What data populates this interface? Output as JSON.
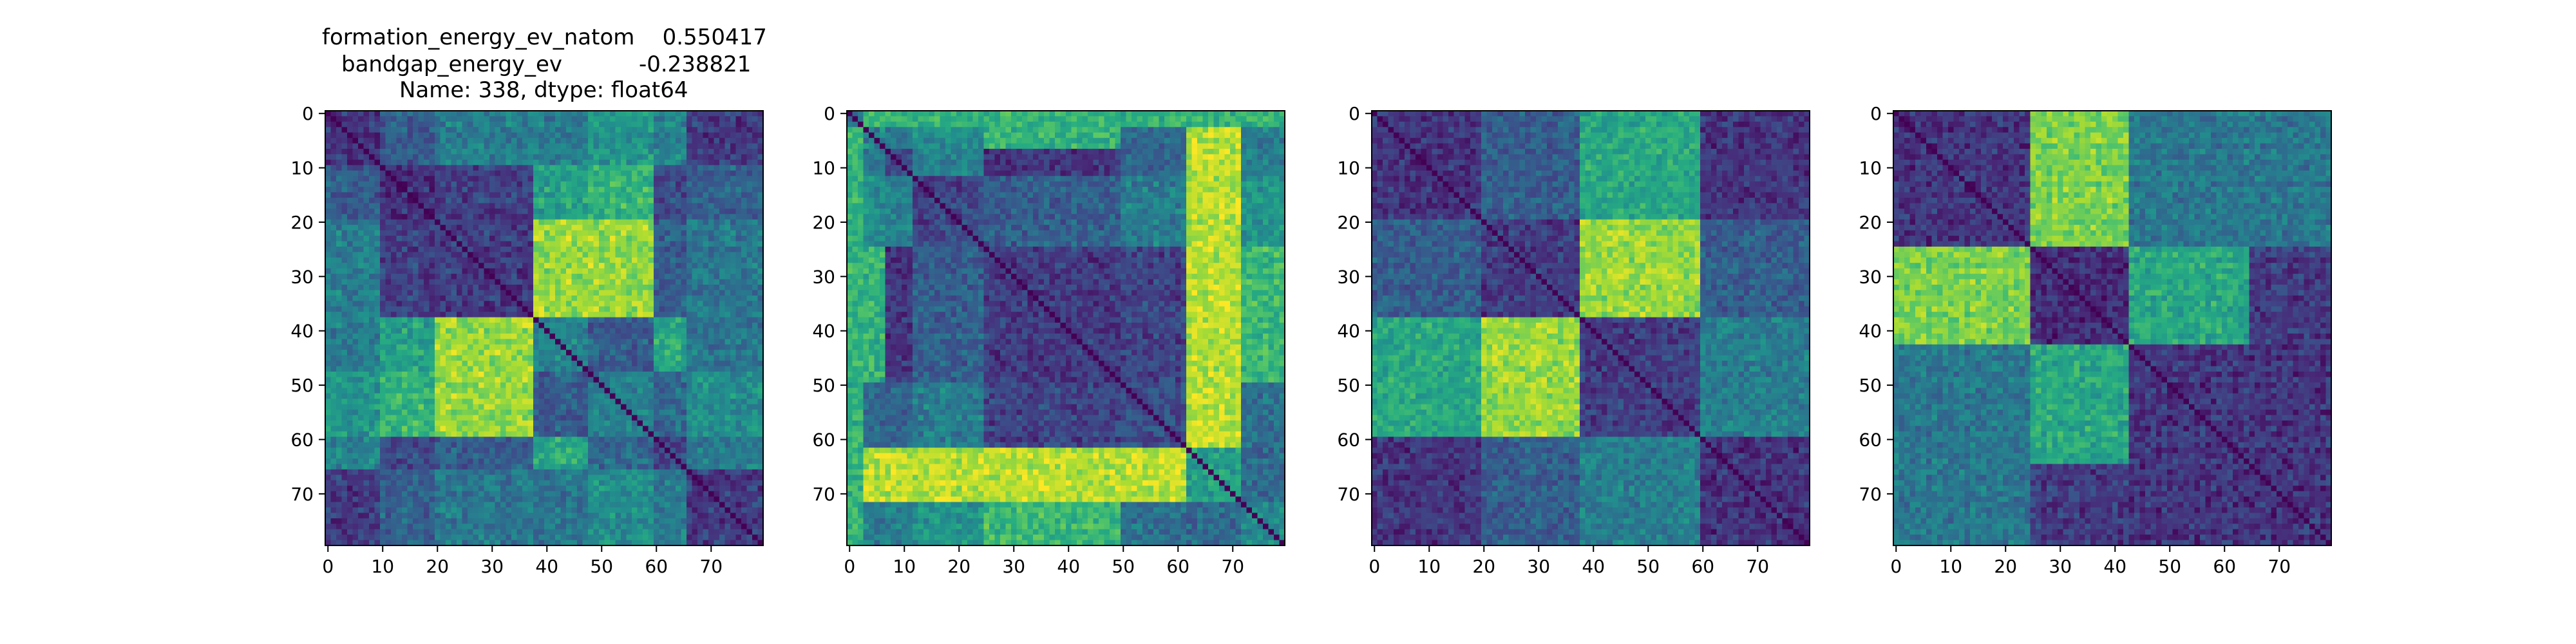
{
  "figure": {
    "title_lines": [
      "formation_energy_ev_natom    0.550417",
      "bandgap_energy_ev           -0.238821",
      "Name: 338, dtype: float64"
    ]
  },
  "chart_data": [
    {
      "type": "heatmap",
      "size": 80,
      "colormap": "viridis",
      "xlim": [
        0,
        79
      ],
      "ylim": [
        79,
        0
      ],
      "xticks": [
        0,
        10,
        20,
        30,
        40,
        50,
        60,
        70
      ],
      "yticks": [
        0,
        10,
        20,
        30,
        40,
        50,
        60,
        70
      ],
      "xtick_labels": [
        "0",
        "10",
        "20",
        "30",
        "40",
        "50",
        "60",
        "70"
      ],
      "ytick_labels": [
        "0",
        "10",
        "20",
        "30",
        "40",
        "50",
        "60",
        "70"
      ],
      "diagonal_value": 0.0,
      "blocks": [
        0,
        10,
        20,
        38,
        48,
        60,
        66,
        80
      ],
      "block_levels": [
        0.25,
        0.22,
        0.3,
        0.75,
        0.7,
        0.35,
        0.3
      ],
      "note": "symmetric distance-style matrix: low values near diagonal, high values at rows 20-38 vs cols 38-60"
    },
    {
      "type": "heatmap",
      "size": 80,
      "colormap": "viridis",
      "xlim": [
        0,
        79
      ],
      "ylim": [
        79,
        0
      ],
      "xticks": [
        0,
        10,
        20,
        30,
        40,
        50,
        60,
        70
      ],
      "yticks": [
        0,
        10,
        20,
        30,
        40,
        50,
        60,
        70
      ],
      "xtick_labels": [
        "0",
        "10",
        "20",
        "30",
        "40",
        "50",
        "60",
        "70"
      ],
      "ytick_labels": [
        "0",
        "10",
        "20",
        "30",
        "40",
        "50",
        "60",
        "70"
      ],
      "diagonal_value": 0.0,
      "blocks": [
        0,
        3,
        7,
        12,
        25,
        50,
        62,
        72,
        80
      ],
      "block_levels": [
        0.6,
        0.75,
        0.3,
        0.35,
        0.3,
        0.4,
        0.95,
        0.8
      ],
      "note": "high values along rows/cols 63-75 and near 0-8"
    },
    {
      "type": "heatmap",
      "size": 80,
      "colormap": "viridis",
      "xlim": [
        0,
        79
      ],
      "ylim": [
        79,
        0
      ],
      "xticks": [
        0,
        10,
        20,
        30,
        40,
        50,
        60,
        70
      ],
      "yticks": [
        0,
        10,
        20,
        30,
        40,
        50,
        60,
        70
      ],
      "xtick_labels": [
        "0",
        "10",
        "20",
        "30",
        "40",
        "50",
        "60",
        "70"
      ],
      "ytick_labels": [
        "0",
        "10",
        "20",
        "30",
        "40",
        "50",
        "60",
        "70"
      ],
      "diagonal_value": 0.0,
      "blocks": [
        0,
        20,
        38,
        60,
        80
      ],
      "block_levels": [
        0.25,
        0.3,
        0.3,
        0.25
      ],
      "note": "two-by-two block structure; off-diagonal blocks rows 0-38 vs cols 38-60 high"
    },
    {
      "type": "heatmap",
      "size": 80,
      "colormap": "viridis",
      "xlim": [
        0,
        79
      ],
      "ylim": [
        79,
        0
      ],
      "xticks": [
        0,
        10,
        20,
        30,
        40,
        50,
        60,
        70
      ],
      "yticks": [
        0,
        10,
        20,
        30,
        40,
        50,
        60,
        70
      ],
      "xtick_labels": [
        "0",
        "10",
        "20",
        "30",
        "40",
        "50",
        "60",
        "70"
      ],
      "ytick_labels": [
        "0",
        "10",
        "20",
        "30",
        "40",
        "50",
        "60",
        "70"
      ],
      "diagonal_value": 0.0,
      "blocks": [
        0,
        25,
        43,
        80
      ],
      "block_levels": [
        0.25,
        0.2,
        0.25
      ],
      "note": "three blocks; rows 25-43 vs cols 0-25 and 43-65 high"
    }
  ]
}
